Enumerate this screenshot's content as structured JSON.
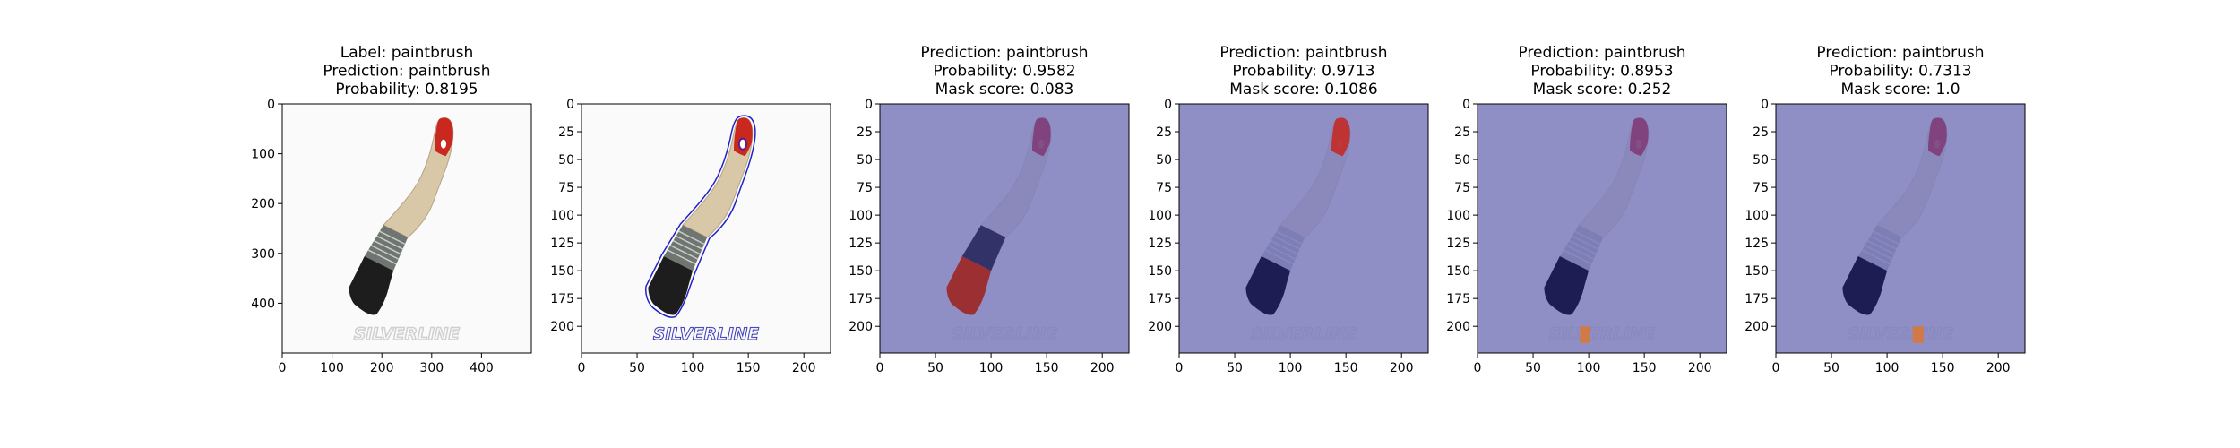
{
  "chart_data": [
    {
      "type": "image",
      "title_lines": [
        "Label: paintbrush",
        "Prediction: paintbrush",
        "Probability: 0.8195"
      ],
      "xlim": [
        0,
        500
      ],
      "ylim": [
        500,
        0
      ],
      "xticks": [
        0,
        100,
        200,
        300,
        400
      ],
      "yticks": [
        0,
        100,
        200,
        300,
        400
      ],
      "mask_overlay": false,
      "contour": false,
      "highlight": null
    },
    {
      "type": "image",
      "title_lines": [],
      "xlim": [
        0,
        224
      ],
      "ylim": [
        224,
        0
      ],
      "xticks": [
        0,
        50,
        100,
        150,
        200
      ],
      "yticks": [
        0,
        25,
        50,
        75,
        100,
        125,
        150,
        175,
        200
      ],
      "mask_overlay": false,
      "contour": true,
      "highlight": null
    },
    {
      "type": "image",
      "title_lines": [
        "Prediction: paintbrush",
        "Probability: 0.9582",
        "Mask score: 0.083"
      ],
      "xlim": [
        0,
        224
      ],
      "ylim": [
        224,
        0
      ],
      "xticks": [
        0,
        50,
        100,
        150,
        200
      ],
      "yticks": [
        0,
        25,
        50,
        75,
        100,
        125,
        150,
        175,
        200
      ],
      "mask_overlay": true,
      "contour": false,
      "highlight": "bristles"
    },
    {
      "type": "image",
      "title_lines": [
        "Prediction: paintbrush",
        "Probability: 0.9713",
        "Mask score: 0.1086"
      ],
      "xlim": [
        0,
        224
      ],
      "ylim": [
        224,
        0
      ],
      "xticks": [
        0,
        50,
        100,
        150,
        200
      ],
      "yticks": [
        0,
        25,
        50,
        75,
        100,
        125,
        150,
        175,
        200
      ],
      "mask_overlay": true,
      "contour": false,
      "highlight": "tip"
    },
    {
      "type": "image",
      "title_lines": [
        "Prediction: paintbrush",
        "Probability: 0.8953",
        "Mask score: 0.252"
      ],
      "xlim": [
        0,
        224
      ],
      "ylim": [
        224,
        0
      ],
      "xticks": [
        0,
        50,
        100,
        150,
        200
      ],
      "yticks": [
        0,
        25,
        50,
        75,
        100,
        125,
        150,
        175,
        200
      ],
      "mask_overlay": true,
      "contour": false,
      "highlight": "watermark-s"
    },
    {
      "type": "image",
      "title_lines": [
        "Prediction: paintbrush",
        "Probability: 0.7313",
        "Mask score: 1.0"
      ],
      "xlim": [
        0,
        224
      ],
      "ylim": [
        224,
        0
      ],
      "xticks": [
        0,
        50,
        100,
        150,
        200
      ],
      "yticks": [
        0,
        25,
        50,
        75,
        100,
        125,
        150,
        175,
        200
      ],
      "mask_overlay": true,
      "contour": false,
      "highlight": "watermark-v"
    }
  ],
  "watermark_text": "SILVERLINE",
  "colors": {
    "mask_blue": "#7f80be",
    "brush_handle": "#d8c8a8",
    "brush_tip": "#c8281e",
    "ferrule": "#6f7570",
    "bristles": "#1d1d1d",
    "contour": "#2020c8",
    "highlight_red": "#a81808",
    "watermark_highlight": "#d07a4a"
  }
}
